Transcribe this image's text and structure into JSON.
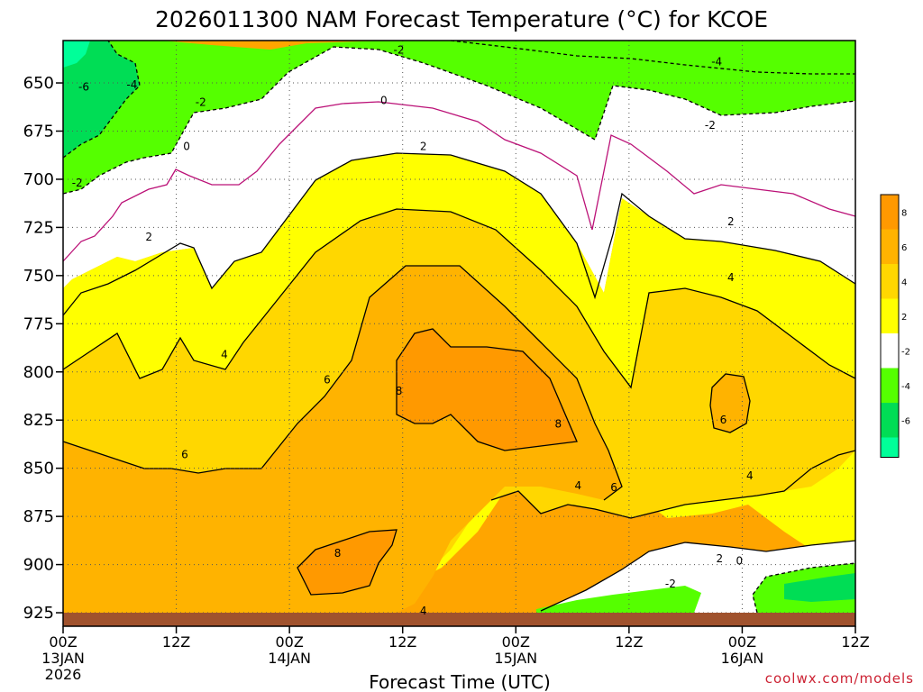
{
  "chart_data": {
    "type": "heatmap",
    "title": "2026011300 NAM Forecast Temperature (°C) for KCOE",
    "xlabel": "Forecast Time (UTC)",
    "ylabel": "",
    "credit": "coolwx.com/models",
    "y_ticks": [
      "650",
      "675",
      "700",
      "725",
      "750",
      "775",
      "800",
      "825",
      "850",
      "875",
      "900",
      "925"
    ],
    "y_values": [
      650,
      675,
      700,
      725,
      750,
      775,
      800,
      825,
      850,
      875,
      900,
      925
    ],
    "ylim": [
      628,
      932
    ],
    "xlim_hours": [
      0,
      84
    ],
    "x_ticks": [
      {
        "hour": 0,
        "label": "00Z",
        "sub1": "13JAN",
        "sub2": "2026"
      },
      {
        "hour": 12,
        "label": "12Z",
        "sub1": "",
        "sub2": ""
      },
      {
        "hour": 24,
        "label": "00Z",
        "sub1": "14JAN",
        "sub2": ""
      },
      {
        "hour": 36,
        "label": "12Z",
        "sub1": "",
        "sub2": ""
      },
      {
        "hour": 48,
        "label": "00Z",
        "sub1": "15JAN",
        "sub2": ""
      },
      {
        "hour": 60,
        "label": "12Z",
        "sub1": "",
        "sub2": ""
      },
      {
        "hour": 72,
        "label": "00Z",
        "sub1": "16JAN",
        "sub2": ""
      },
      {
        "hour": 84,
        "label": "12Z",
        "sub1": "",
        "sub2": ""
      }
    ],
    "levels": [
      -6,
      -4,
      -2,
      2,
      4,
      6,
      8
    ],
    "colorbar": [
      {
        "value": "8",
        "color": "#ff9900"
      },
      {
        "value": "6",
        "color": "#ffb300"
      },
      {
        "value": "4",
        "color": "#ffd700"
      },
      {
        "value": "2",
        "color": "#ffff00"
      },
      {
        "value": "-2",
        "color": "#ffffff"
      },
      {
        "value": "-4",
        "color": "#55ff00"
      },
      {
        "value": "-6",
        "color": "#00dd55"
      }
    ],
    "colorbar_bottom_color": "#00ff99",
    "ground_color": "#a0522d",
    "contour_labels": [
      {
        "text": "-6",
        "hour": 2.2,
        "p": 652
      },
      {
        "text": "-4",
        "hour": 7.3,
        "p": 651
      },
      {
        "text": "-2",
        "hour": 14.6,
        "p": 660
      },
      {
        "text": "-2",
        "hour": 35.6,
        "p": 633
      },
      {
        "text": "-4",
        "hour": 69.3,
        "p": 639
      },
      {
        "text": "-2",
        "hour": 68.6,
        "p": 672
      },
      {
        "text": "-2",
        "hour": 1.5,
        "p": 702
      },
      {
        "text": "0",
        "hour": 13.1,
        "p": 683
      },
      {
        "text": "0",
        "hour": 34.0,
        "p": 659
      },
      {
        "text": "2",
        "hour": 38.2,
        "p": 683
      },
      {
        "text": "2",
        "hour": 9.1,
        "p": 730
      },
      {
        "text": "2",
        "hour": 70.8,
        "p": 722
      },
      {
        "text": "4",
        "hour": 17.1,
        "p": 791
      },
      {
        "text": "4",
        "hour": 70.8,
        "p": 751
      },
      {
        "text": "4",
        "hour": 54.6,
        "p": 859
      },
      {
        "text": "4",
        "hour": 72.8,
        "p": 854
      },
      {
        "text": "4",
        "hour": 38.2,
        "p": 924
      },
      {
        "text": "6",
        "hour": 28.0,
        "p": 804
      },
      {
        "text": "6",
        "hour": 12.9,
        "p": 843
      },
      {
        "text": "6",
        "hour": 58.4,
        "p": 860
      },
      {
        "text": "6",
        "hour": 70.0,
        "p": 825
      },
      {
        "text": "8",
        "hour": 35.6,
        "p": 810
      },
      {
        "text": "8",
        "hour": 52.5,
        "p": 827
      },
      {
        "text": "8",
        "hour": 29.1,
        "p": 894
      },
      {
        "text": "2",
        "hour": 69.6,
        "p": 897
      },
      {
        "text": "0",
        "hour": 71.7,
        "p": 898
      },
      {
        "text": "-2",
        "hour": 64.4,
        "p": 910
      }
    ]
  }
}
